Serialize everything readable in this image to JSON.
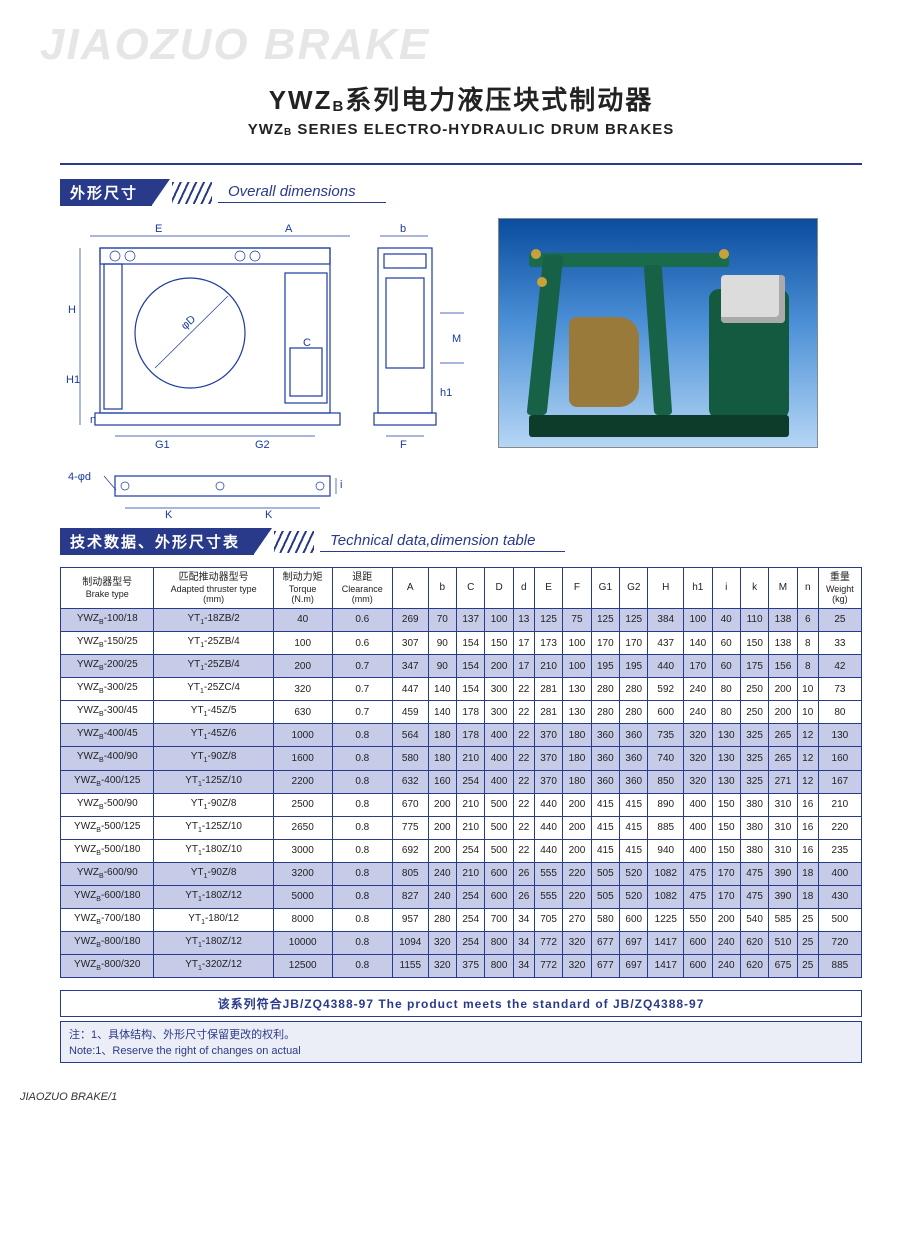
{
  "brand_watermark": "JIAOZUO  BRAKE",
  "title": {
    "cn_prefix": "YWZ",
    "cn_sub": "B",
    "cn_suffix": "系列电力液压块式制动器",
    "en_prefix": "YWZ",
    "en_sub": "B",
    "en_suffix": "  SERIES ELECTRO-HYDRAULIC DRUM BRAKES"
  },
  "section_dim": {
    "cn": "外形尺寸",
    "en": "Overall dimensions"
  },
  "drawing_labels": {
    "E": "E",
    "A": "A",
    "b": "b",
    "H": "H",
    "H1": "H1",
    "D": "φD",
    "C": "C",
    "M": "M",
    "G1": "G1",
    "G2": "G2",
    "h1": "h1",
    "n": "n",
    "F": "F",
    "i": "i",
    "K": "K",
    "fourphid": "4-φd"
  },
  "section_table": {
    "cn": "技术数据、外形尺寸表",
    "en": "Technical data,dimension table"
  },
  "columns": [
    {
      "cn": "制动器型号",
      "en": "Brake type"
    },
    {
      "cn": "匹配推动器型号",
      "en": "Adapted thruster type",
      "extra": "(mm)"
    },
    {
      "cn": "制动力矩",
      "en": "Torque",
      "extra": "(N.m)"
    },
    {
      "cn": "退距",
      "en": "Clearance",
      "extra": "(mm)"
    },
    {
      "cn": "A",
      "en": ""
    },
    {
      "cn": "b",
      "en": ""
    },
    {
      "cn": "C",
      "en": ""
    },
    {
      "cn": "D",
      "en": ""
    },
    {
      "cn": "d",
      "en": ""
    },
    {
      "cn": "E",
      "en": ""
    },
    {
      "cn": "F",
      "en": ""
    },
    {
      "cn": "G1",
      "en": ""
    },
    {
      "cn": "G2",
      "en": ""
    },
    {
      "cn": "H",
      "en": ""
    },
    {
      "cn": "h1",
      "en": ""
    },
    {
      "cn": "i",
      "en": ""
    },
    {
      "cn": "k",
      "en": ""
    },
    {
      "cn": "M",
      "en": ""
    },
    {
      "cn": "n",
      "en": ""
    },
    {
      "cn": "重量",
      "en": "Weight",
      "extra": "(kg)"
    }
  ],
  "rows": [
    {
      "band": true,
      "c": [
        "YWZ_B-100/18",
        "YT_1-18ZB/2",
        "40",
        "0.6",
        "269",
        "70",
        "137",
        "100",
        "13",
        "125",
        "75",
        "125",
        "125",
        "384",
        "100",
        "40",
        "110",
        "138",
        "6",
        "25"
      ]
    },
    {
      "band": false,
      "c": [
        "YWZ_B-150/25",
        "YT_1-25ZB/4",
        "100",
        "0.6",
        "307",
        "90",
        "154",
        "150",
        "17",
        "173",
        "100",
        "170",
        "170",
        "437",
        "140",
        "60",
        "150",
        "138",
        "8",
        "33"
      ]
    },
    {
      "band": true,
      "c": [
        "YWZ_B-200/25",
        "YT_1-25ZB/4",
        "200",
        "0.7",
        "347",
        "90",
        "154",
        "200",
        "17",
        "210",
        "100",
        "195",
        "195",
        "440",
        "170",
        "60",
        "175",
        "156",
        "8",
        "42"
      ]
    },
    {
      "band": false,
      "c": [
        "YWZ_B-300/25",
        "YT_1-25ZC/4",
        "320",
        "0.7",
        "447",
        "140",
        "154",
        "300",
        "22",
        "281",
        "130",
        "280",
        "280",
        "592",
        "240",
        "80",
        "250",
        "200",
        "10",
        "73"
      ]
    },
    {
      "band": false,
      "c": [
        "YWZ_B-300/45",
        "YT_1-45Z/5",
        "630",
        "0.7",
        "459",
        "140",
        "178",
        "300",
        "22",
        "281",
        "130",
        "280",
        "280",
        "600",
        "240",
        "80",
        "250",
        "200",
        "10",
        "80"
      ]
    },
    {
      "band": true,
      "c": [
        "YWZ_B-400/45",
        "YT_1-45Z/6",
        "1000",
        "0.8",
        "564",
        "180",
        "178",
        "400",
        "22",
        "370",
        "180",
        "360",
        "360",
        "735",
        "320",
        "130",
        "325",
        "265",
        "12",
        "130"
      ]
    },
    {
      "band": true,
      "c": [
        "YWZ_B-400/90",
        "YT_1-90Z/8",
        "1600",
        "0.8",
        "580",
        "180",
        "210",
        "400",
        "22",
        "370",
        "180",
        "360",
        "360",
        "740",
        "320",
        "130",
        "325",
        "265",
        "12",
        "160"
      ]
    },
    {
      "band": true,
      "c": [
        "YWZ_B-400/125",
        "YT_1-125Z/10",
        "2200",
        "0.8",
        "632",
        "160",
        "254",
        "400",
        "22",
        "370",
        "180",
        "360",
        "360",
        "850",
        "320",
        "130",
        "325",
        "271",
        "12",
        "167"
      ]
    },
    {
      "band": false,
      "c": [
        "YWZ_B-500/90",
        "YT_1-90Z/8",
        "2500",
        "0.8",
        "670",
        "200",
        "210",
        "500",
        "22",
        "440",
        "200",
        "415",
        "415",
        "890",
        "400",
        "150",
        "380",
        "310",
        "16",
        "210"
      ]
    },
    {
      "band": false,
      "c": [
        "YWZ_B-500/125",
        "YT_1-125Z/10",
        "2650",
        "0.8",
        "775",
        "200",
        "210",
        "500",
        "22",
        "440",
        "200",
        "415",
        "415",
        "885",
        "400",
        "150",
        "380",
        "310",
        "16",
        "220"
      ]
    },
    {
      "band": false,
      "c": [
        "YWZ_B-500/180",
        "YT_1-180Z/10",
        "3000",
        "0.8",
        "692",
        "200",
        "254",
        "500",
        "22",
        "440",
        "200",
        "415",
        "415",
        "940",
        "400",
        "150",
        "380",
        "310",
        "16",
        "235"
      ]
    },
    {
      "band": true,
      "c": [
        "YWZ_B-600/90",
        "YT_1-90Z/8",
        "3200",
        "0.8",
        "805",
        "240",
        "210",
        "600",
        "26",
        "555",
        "220",
        "505",
        "520",
        "1082",
        "475",
        "170",
        "475",
        "390",
        "18",
        "400"
      ]
    },
    {
      "band": true,
      "c": [
        "YWZ_B-600/180",
        "YT_1-180Z/12",
        "5000",
        "0.8",
        "827",
        "240",
        "254",
        "600",
        "26",
        "555",
        "220",
        "505",
        "520",
        "1082",
        "475",
        "170",
        "475",
        "390",
        "18",
        "430"
      ]
    },
    {
      "band": false,
      "c": [
        "YWZ_B-700/180",
        "YT_1-180/12",
        "8000",
        "0.8",
        "957",
        "280",
        "254",
        "700",
        "34",
        "705",
        "270",
        "580",
        "600",
        "1225",
        "550",
        "200",
        "540",
        "585",
        "25",
        "500"
      ]
    },
    {
      "band": true,
      "c": [
        "YWZ_B-800/180",
        "YT_1-180Z/12",
        "10000",
        "0.8",
        "1094",
        "320",
        "254",
        "800",
        "34",
        "772",
        "320",
        "677",
        "697",
        "1417",
        "600",
        "240",
        "620",
        "510",
        "25",
        "720"
      ]
    },
    {
      "band": true,
      "c": [
        "YWZ_B-800/320",
        "YT_1-320Z/12",
        "12500",
        "0.8",
        "1155",
        "320",
        "375",
        "800",
        "34",
        "772",
        "320",
        "677",
        "697",
        "1417",
        "600",
        "240",
        "620",
        "675",
        "25",
        "885"
      ]
    }
  ],
  "standard": "该系列符合JB/ZQ4388-97    The product meets the standard of JB/ZQ4388-97",
  "note_cn": "注：1、具体结构、外形尺寸保留更改的权利。",
  "note_en": "Note:1、Reserve the right of changes on actual",
  "footer": "JIAOZUO BRAKE/1",
  "colors": {
    "primary": "#2a3a8a",
    "band": "#c6cbe8",
    "note_bg": "#eceef7",
    "watermark": "#e6e6e6"
  }
}
